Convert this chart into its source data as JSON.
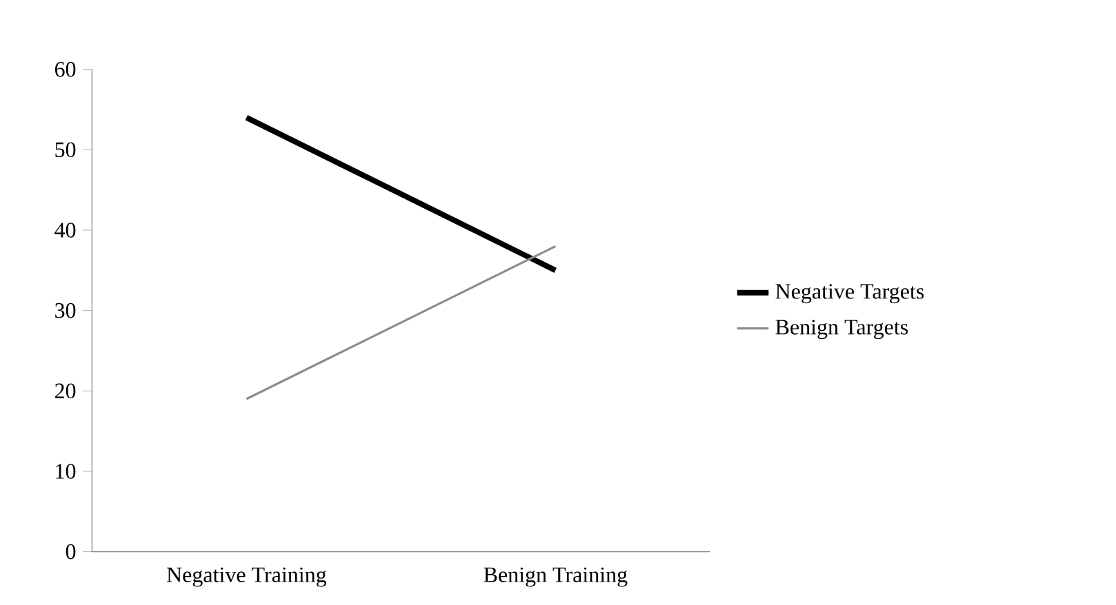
{
  "chart_data": {
    "type": "line",
    "categories": [
      "Negative Training",
      "Benign Training"
    ],
    "series": [
      {
        "name": "Negative Targets",
        "color": "#000000",
        "values": [
          54,
          35
        ]
      },
      {
        "name": "Benign Targets",
        "color": "#8c8c8c",
        "values": [
          19,
          38
        ]
      }
    ],
    "ylim": [
      0,
      60
    ],
    "yticks": [
      0,
      10,
      20,
      30,
      40,
      50,
      60
    ],
    "legend": "right",
    "marker": "none",
    "line_style": "solid"
  }
}
